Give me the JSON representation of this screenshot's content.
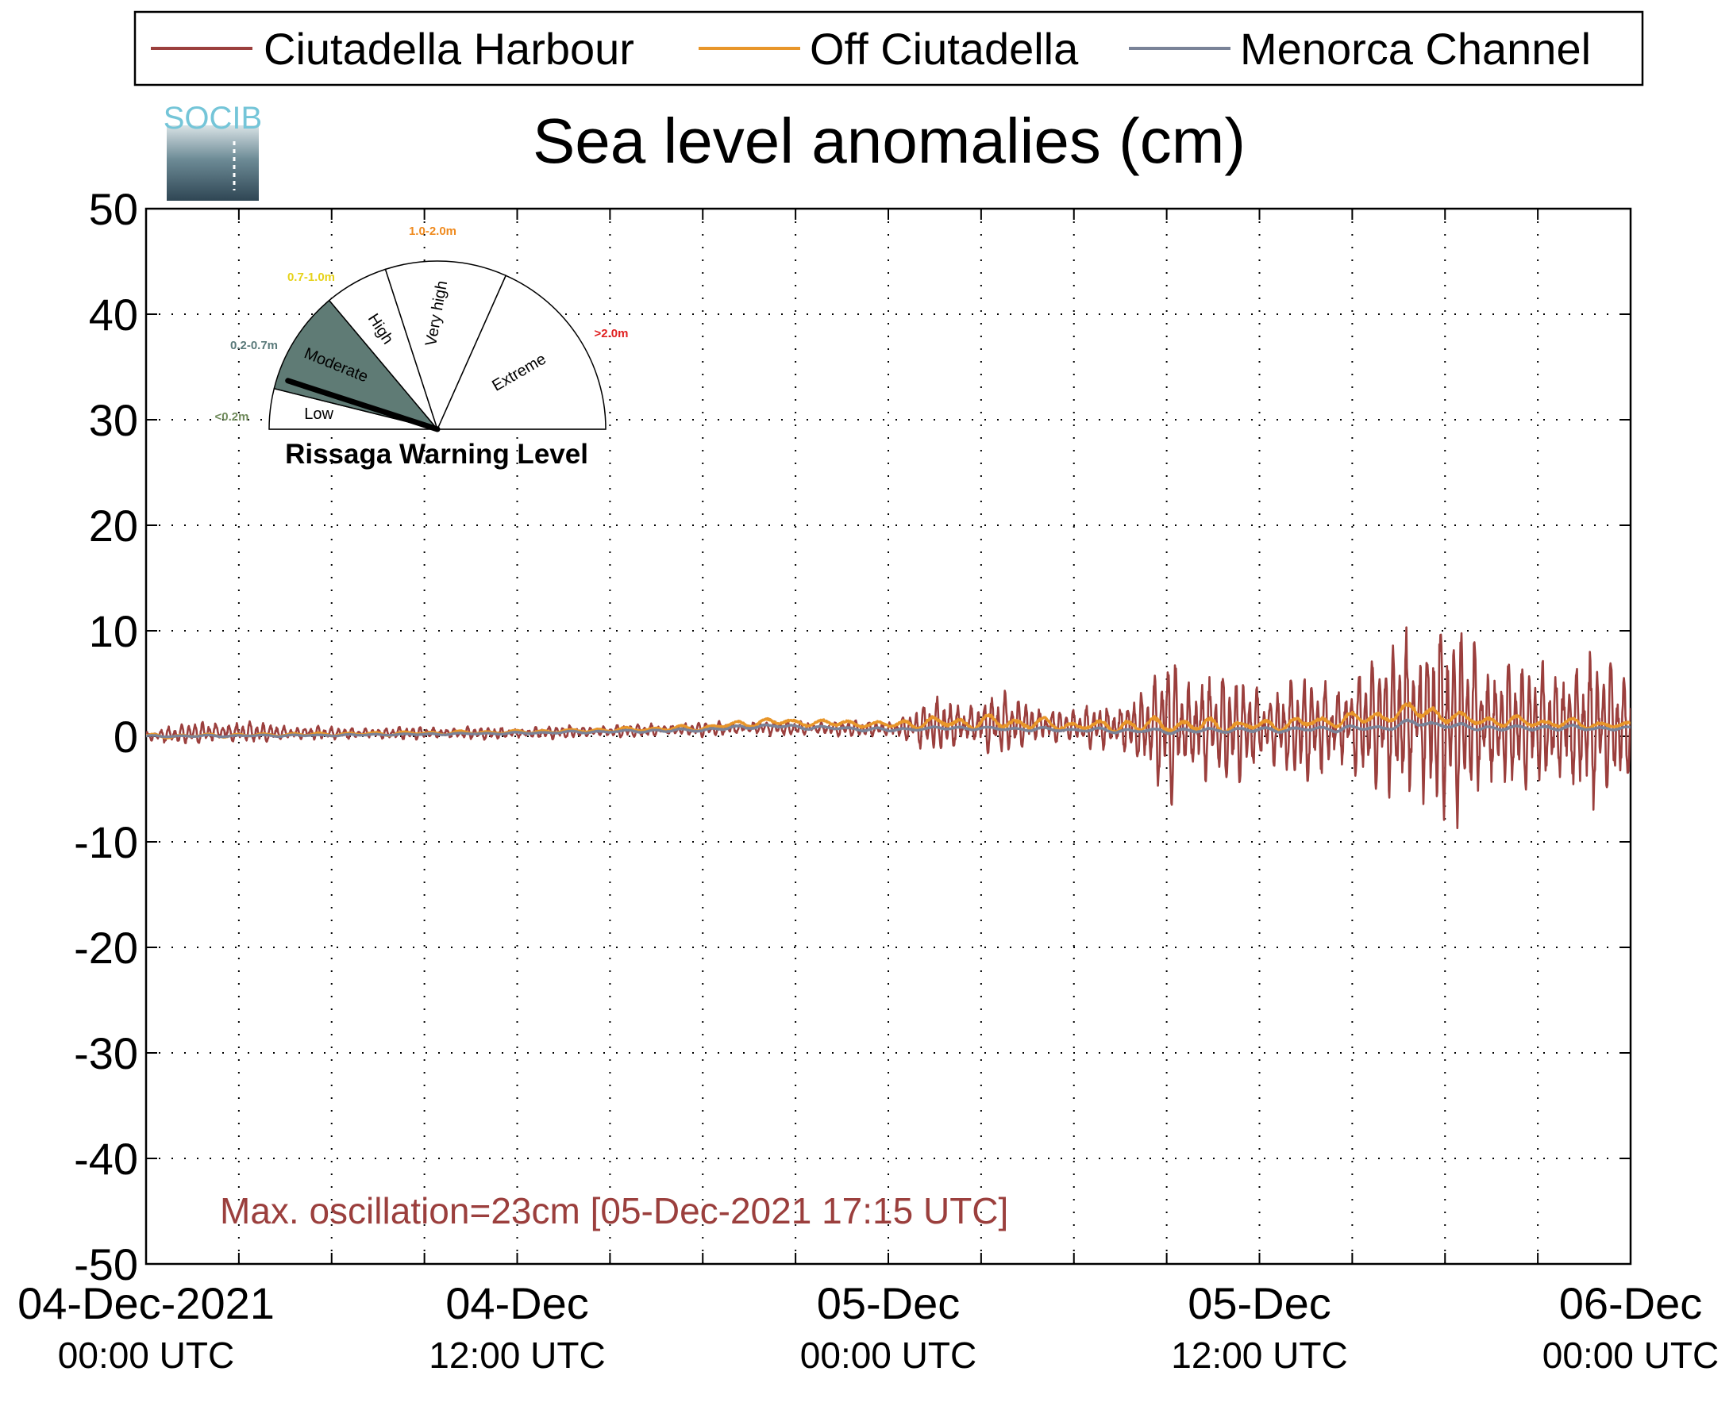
{
  "chart_data": {
    "type": "line",
    "title": "Sea level anomalies (cm)",
    "xlabel": "",
    "ylabel": "",
    "ylim": [
      -50,
      50
    ],
    "yticks": [
      50,
      40,
      30,
      20,
      10,
      0,
      -10,
      -20,
      -30,
      -40,
      -50
    ],
    "xlim_hours": [
      0,
      48
    ],
    "xticks": [
      {
        "h": 0,
        "date": "04-Dec-2021",
        "time": "00:00 UTC"
      },
      {
        "h": 12,
        "date": "04-Dec",
        "time": "12:00 UTC"
      },
      {
        "h": 24,
        "date": "05-Dec",
        "time": "00:00 UTC"
      },
      {
        "h": 36,
        "date": "05-Dec",
        "time": "12:00 UTC"
      },
      {
        "h": 48,
        "date": "06-Dec",
        "time": "00:00 UTC"
      }
    ],
    "grid": true,
    "legend_position": "top",
    "series": [
      {
        "name": "Ciutadella Harbour",
        "color": "#9b3f3d",
        "envelope_hours": [
          0,
          2,
          6,
          12,
          20,
          24,
          25.5,
          28,
          30,
          32.5,
          33,
          33.5,
          36,
          38,
          40,
          41,
          43,
          45,
          46,
          47,
          48
        ],
        "mean": [
          0.0,
          0.4,
          0.3,
          0.3,
          0.8,
          0.7,
          1.0,
          1.2,
          0.9,
          0.8,
          1.2,
          0.9,
          0.7,
          0.8,
          1.5,
          1.8,
          1.2,
          1.0,
          0.9,
          0.8,
          0.7
        ],
        "amplitude": [
          0.6,
          1.2,
          0.6,
          0.6,
          0.7,
          0.8,
          2.5,
          2.8,
          1.5,
          4.0,
          8.0,
          6.0,
          4.5,
          5.0,
          6.5,
          11.0,
          8.5,
          5.5,
          8.0,
          7.0,
          5.0
        ]
      },
      {
        "name": "Off Ciutadella",
        "color": "#e8962a",
        "envelope_hours": [
          0,
          6,
          12,
          18,
          20,
          24,
          25.5,
          28,
          30,
          32.5,
          36,
          40,
          41,
          43,
          46,
          48
        ],
        "mean": [
          0.0,
          0.2,
          0.4,
          0.8,
          1.4,
          1.1,
          1.3,
          1.3,
          1.0,
          1.0,
          1.0,
          1.8,
          2.5,
          1.5,
          1.2,
          1.0
        ],
        "amplitude": [
          0.2,
          0.2,
          0.2,
          0.3,
          0.4,
          0.4,
          0.7,
          0.8,
          0.5,
          1.0,
          0.6,
          0.8,
          1.0,
          0.6,
          0.5,
          0.4
        ]
      },
      {
        "name": "Menorca Channel",
        "color": "#7a8398",
        "envelope_hours": [
          0,
          6,
          12,
          18,
          20,
          24,
          26,
          30,
          32.5,
          36,
          40,
          41,
          43,
          46,
          48
        ],
        "mean": [
          0.0,
          0.1,
          0.3,
          0.6,
          1.0,
          0.6,
          0.8,
          0.6,
          0.5,
          0.6,
          0.8,
          1.3,
          0.8,
          0.8,
          0.7
        ],
        "amplitude": [
          0.1,
          0.1,
          0.1,
          0.2,
          0.2,
          0.2,
          0.2,
          0.2,
          0.3,
          0.3,
          0.3,
          0.4,
          0.3,
          0.3,
          0.2
        ]
      }
    ],
    "annotation": "Max. oscillation=23cm [05-Dec-2021 17:15 UTC]",
    "annotation_color": "#9b3f3d"
  },
  "logo": {
    "text": "SOCIB",
    "colors": {
      "text": "#74c5d8",
      "gradient_top": "#d8e2e5",
      "gradient_mid": "#6d8b96",
      "gradient_bottom": "#2f4654"
    }
  },
  "gauge": {
    "title": "Rissaga Warning Level",
    "current_level": "Moderate",
    "needle_value_m": 0.25,
    "sectors": [
      {
        "label": "Low",
        "range": "<0.2m",
        "range_color": "#6f8a5a",
        "fill": "#ffffff"
      },
      {
        "label": "Moderate",
        "range": "0.2-0.7m",
        "range_color": "#5a7a7a",
        "fill": "#5f7b75"
      },
      {
        "label": "High",
        "range": "0.7-1.0m",
        "range_color": "#e6d21a",
        "fill": "#ffffff"
      },
      {
        "label": "Very high",
        "range": "1.0-2.0m",
        "range_color": "#ef8a1e",
        "fill": "#ffffff"
      },
      {
        "label": "Extreme",
        "range": ">2.0m",
        "range_color": "#e02020",
        "fill": "#ffffff"
      }
    ]
  }
}
